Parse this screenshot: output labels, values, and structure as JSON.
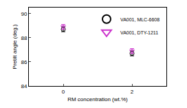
{
  "chart_data": {
    "type": "scatter",
    "x_label": "RM concentration (wt.%)",
    "y_label": "Pretilt angle (deg.)",
    "x": [
      0,
      2
    ],
    "series": [
      {
        "name": "VA001, MLC-6608",
        "color": "#000000",
        "marker": "circle-open",
        "values": [
          88.7,
          86.7
        ],
        "errors": [
          0.2,
          0.2
        ]
      },
      {
        "name": "VA001, DTY-1211",
        "color": "#cc33cc",
        "marker": "triangle-down-open",
        "values": [
          88.9,
          86.9
        ],
        "errors": [
          0.2,
          0.2
        ]
      }
    ],
    "xlim": [
      -1,
      3
    ],
    "xticks": [
      0,
      2
    ],
    "ylim": [
      84,
      90.5
    ],
    "yticks": [
      84,
      86,
      88,
      90
    ],
    "grid": false,
    "legend": "upper right"
  }
}
